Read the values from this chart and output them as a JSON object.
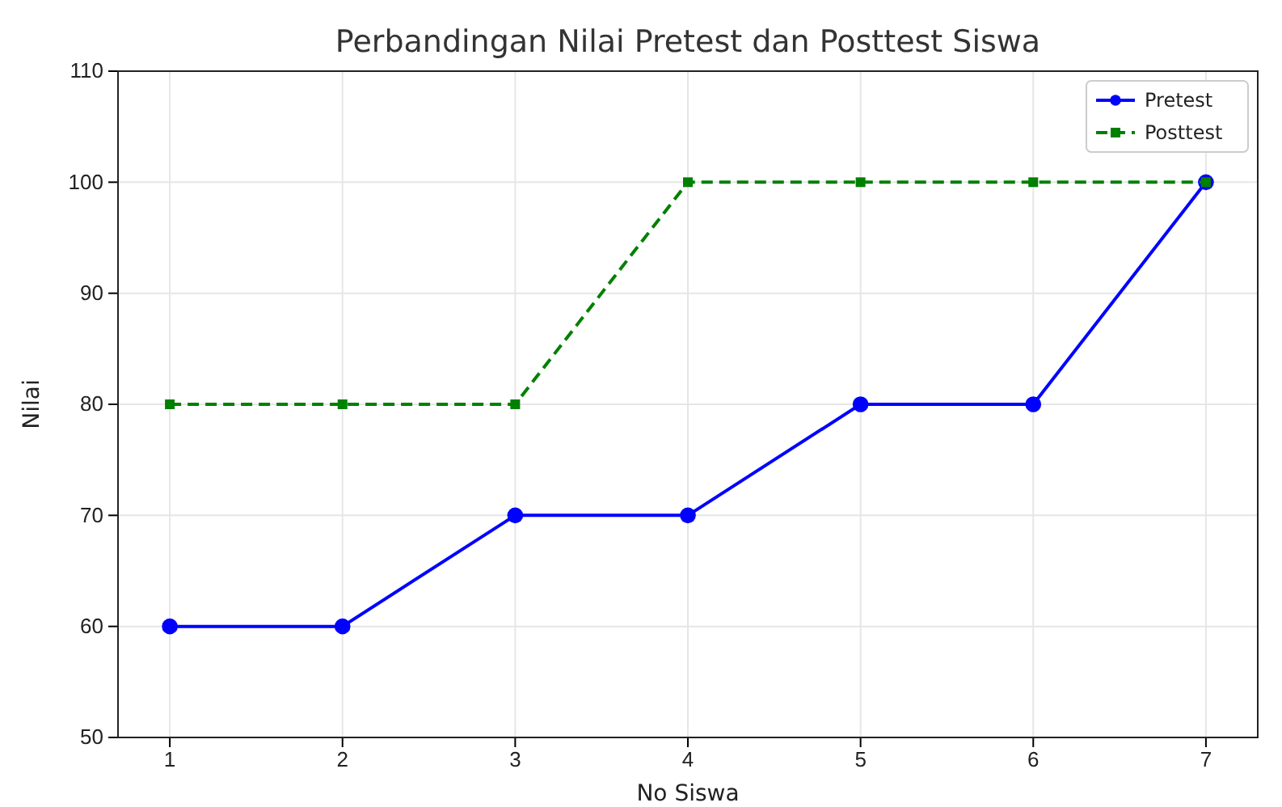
{
  "chart_data": {
    "type": "line",
    "title": "Perbandingan Nilai Pretest dan Posttest Siswa",
    "xlabel": "No Siswa",
    "ylabel": "Nilai",
    "x": [
      1,
      2,
      3,
      4,
      5,
      6,
      7
    ],
    "series": [
      {
        "name": "Pretest",
        "color": "#0000ff",
        "values": [
          60,
          60,
          70,
          70,
          80,
          80,
          100
        ],
        "marker": "circle",
        "line_style": "solid"
      },
      {
        "name": "Posttest",
        "color": "#008000",
        "values": [
          80,
          80,
          80,
          100,
          100,
          100,
          100
        ],
        "marker": "square",
        "line_style": "dashed"
      }
    ],
    "xlim": [
      0.7,
      7.3
    ],
    "xticks": [
      1,
      2,
      3,
      4,
      5,
      6,
      7
    ],
    "ylim": [
      50,
      110
    ],
    "yticks": [
      50,
      60,
      70,
      80,
      90,
      100,
      110
    ],
    "grid": true,
    "legend": "top right"
  }
}
